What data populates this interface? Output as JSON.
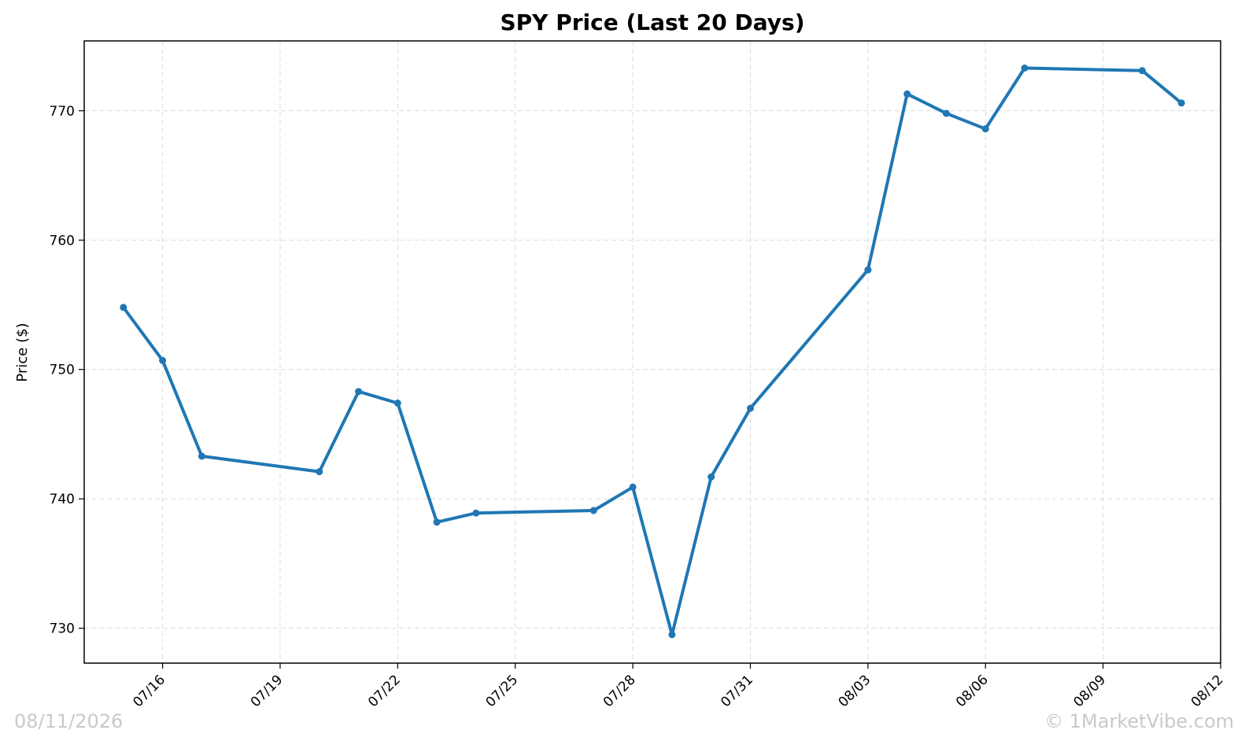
{
  "chart_data": {
    "type": "line",
    "title": "SPY Price (Last 20 Days)",
    "xlabel": "",
    "ylabel": "Price ($)",
    "x_dates": [
      "2026-07-15",
      "2026-07-16",
      "2026-07-17",
      "2026-07-20",
      "2026-07-21",
      "2026-07-22",
      "2026-07-23",
      "2026-07-24",
      "2026-07-27",
      "2026-07-28",
      "2026-07-29",
      "2026-07-30",
      "2026-07-31",
      "2026-08-03",
      "2026-08-04",
      "2026-08-05",
      "2026-08-06",
      "2026-08-07",
      "2026-08-10",
      "2026-08-11"
    ],
    "series": [
      {
        "color": "#1f77b4",
        "values": [
          754.8,
          750.7,
          743.3,
          742.1,
          748.3,
          747.4,
          738.2,
          738.9,
          739.1,
          740.9,
          729.5,
          741.7,
          747.0,
          757.7,
          771.3,
          769.8,
          768.6,
          773.3,
          773.1,
          770.6
        ]
      }
    ],
    "xtick_dates": [
      "2026-07-16",
      "2026-07-19",
      "2026-07-22",
      "2026-07-25",
      "2026-07-28",
      "2026-07-31",
      "2026-08-03",
      "2026-08-06",
      "2026-08-09",
      "2026-08-12"
    ],
    "xtick_labels": [
      "07/16",
      "07/19",
      "07/22",
      "07/25",
      "07/28",
      "07/31",
      "08/03",
      "08/06",
      "08/09",
      "08/12"
    ],
    "xlim": [
      "2026-07-14",
      "2026-08-12"
    ],
    "yticks": [
      730,
      740,
      750,
      760,
      770
    ],
    "ylim": [
      727.3,
      775.4
    ],
    "grid": true
  },
  "footer": {
    "date_stamp": "08/11/2026",
    "copyright": "© 1MarketVibe.com"
  }
}
